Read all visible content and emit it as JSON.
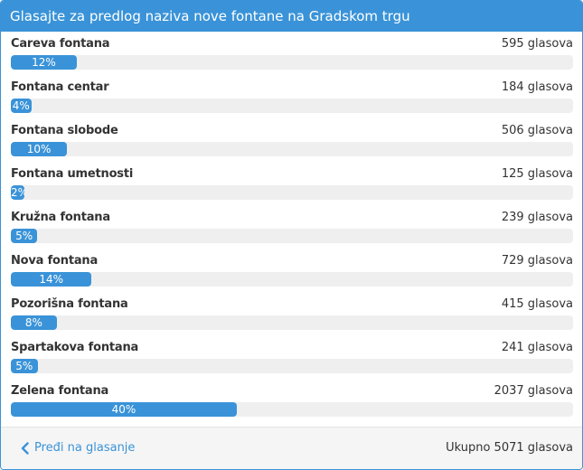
{
  "header": {
    "title": "Glasajte za predlog naziva nove fontane na Gradskom trgu"
  },
  "colors": {
    "accent": "#3a93d8",
    "track": "#efefef"
  },
  "options": [
    {
      "label": "Careva fontana",
      "votes": "595 glasova",
      "percent_label": "12%",
      "percent": 11.73
    },
    {
      "label": "Fontana centar",
      "votes": "184 glasova",
      "percent_label": "4%",
      "percent": 3.63
    },
    {
      "label": "Fontana slobode",
      "votes": "506 glasova",
      "percent_label": "10%",
      "percent": 9.98
    },
    {
      "label": "Fontana umetnosti",
      "votes": "125 glasova",
      "percent_label": "2%",
      "percent": 2.46
    },
    {
      "label": "Kružna fontana",
      "votes": "239 glasova",
      "percent_label": "5%",
      "percent": 4.71
    },
    {
      "label": "Nova fontana",
      "votes": "729 glasova",
      "percent_label": "14%",
      "percent": 14.38
    },
    {
      "label": "Pozorišna fontana",
      "votes": "415 glasova",
      "percent_label": "8%",
      "percent": 8.18
    },
    {
      "label": "Spartakova fontana",
      "votes": "241 glasova",
      "percent_label": "5%",
      "percent": 4.75
    },
    {
      "label": "Zelena fontana",
      "votes": "2037 glasova",
      "percent_label": "40%",
      "percent": 40.17
    }
  ],
  "footer": {
    "back_label": "Pređi na glasanje",
    "back_icon": "chevron-left-icon",
    "total": "Ukupno 5071 glasova"
  }
}
